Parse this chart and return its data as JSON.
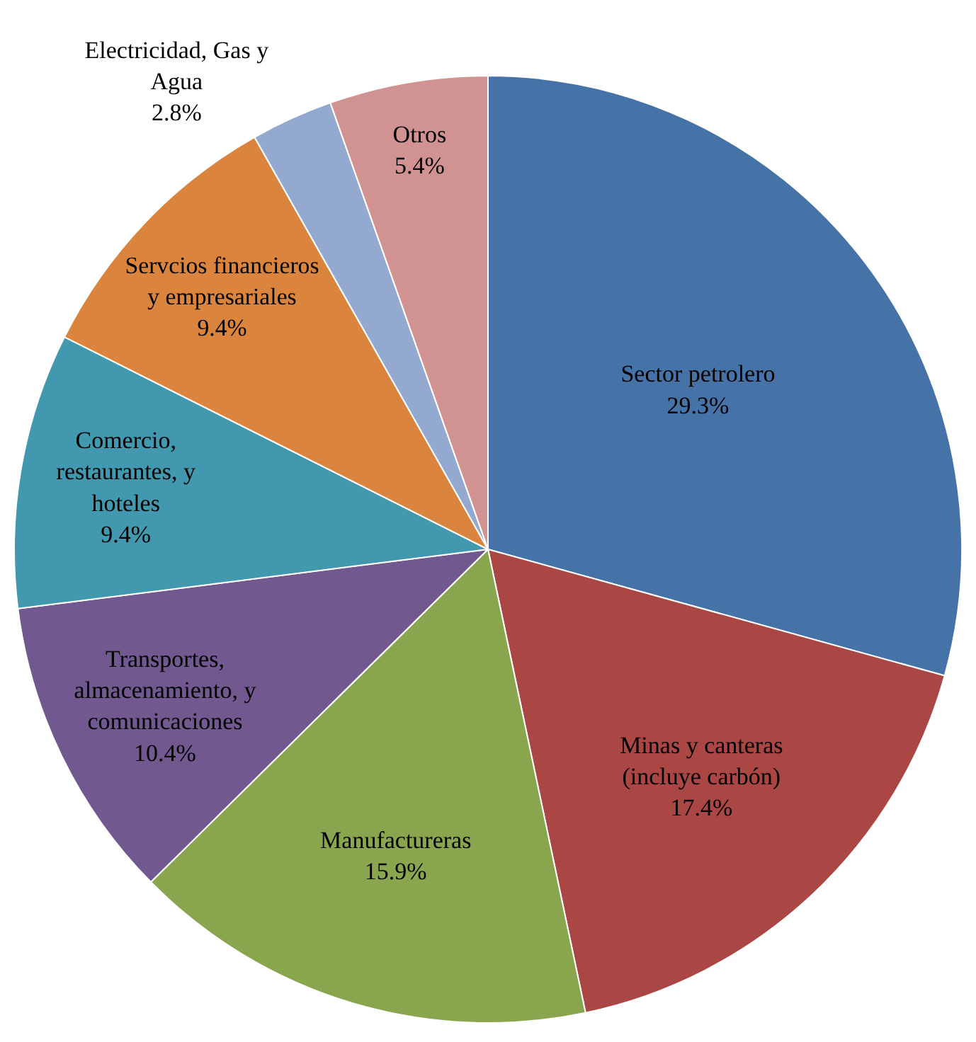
{
  "chart_data": {
    "type": "pie",
    "categories": [
      "Sector petrolero",
      "Minas y canteras (incluye carbón)",
      "Manufactureras",
      "Transportes, almacenamiento, y comunicaciones",
      "Comercio, restaurantes, y hoteles",
      "Servcios financieros y empresariales",
      "Electricidad, Gas y Agua",
      "Otros"
    ],
    "values": [
      29.3,
      17.4,
      15.9,
      10.4,
      9.4,
      9.4,
      2.8,
      5.4
    ],
    "value_labels": [
      "29.3%",
      "17.4%",
      "15.9%",
      "10.4%",
      "9.4%",
      "9.4%",
      "2.8%",
      "5.4%"
    ],
    "colors": [
      "#4572a7",
      "#aa4643",
      "#89a54e",
      "#71588f",
      "#4198af",
      "#db843d",
      "#93a9cf",
      "#d19392"
    ],
    "legend": false
  }
}
